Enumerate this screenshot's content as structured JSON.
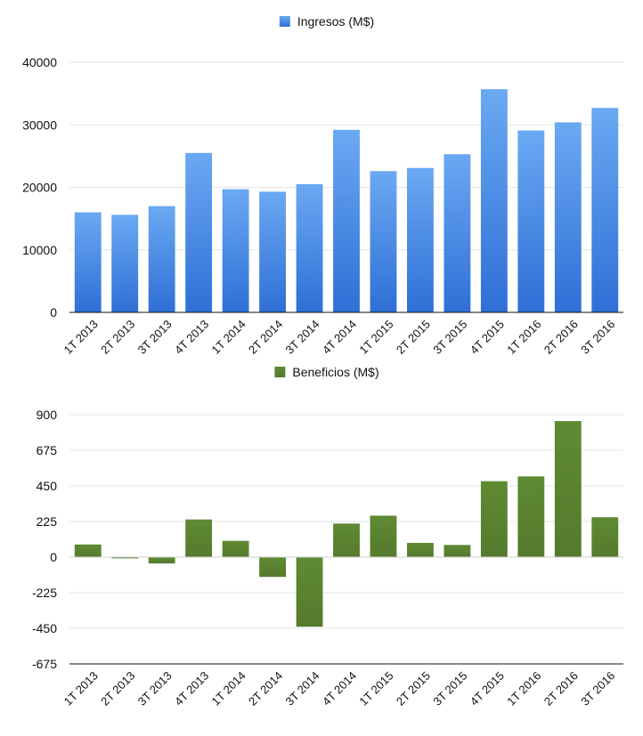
{
  "chart_data": [
    {
      "type": "bar",
      "categories": [
        "1T 2013",
        "2T 2013",
        "3T 2013",
        "4T 2013",
        "1T 2014",
        "2T 2014",
        "3T 2014",
        "4T 2014",
        "1T 2015",
        "2T 2015",
        "3T 2015",
        "4T 2015",
        "1T 2016",
        "2T 2016",
        "3T 2016"
      ],
      "series": [
        {
          "name": "Ingresos (M$)",
          "values": [
            16000,
            15600,
            17000,
            25500,
            19700,
            19300,
            20500,
            29200,
            22600,
            23100,
            25300,
            35700,
            29100,
            30400,
            32700
          ],
          "color": "#4a8fe8"
        }
      ],
      "yticks": [
        "0",
        "10000",
        "20000",
        "30000",
        "40000"
      ],
      "ylim": [
        0,
        40000
      ],
      "grid": true,
      "legend": "top-center"
    },
    {
      "type": "bar",
      "categories": [
        "1T 2013",
        "2T 2013",
        "3T 2013",
        "4T 2013",
        "1T 2014",
        "2T 2014",
        "3T 2014",
        "4T 2014",
        "1T 2015",
        "2T 2015",
        "3T 2015",
        "4T 2015",
        "1T 2016",
        "2T 2016",
        "3T 2016"
      ],
      "series": [
        {
          "name": "Beneficios (M$)",
          "values": [
            80,
            -8,
            -40,
            238,
            103,
            -125,
            -440,
            212,
            262,
            90,
            77,
            480,
            510,
            860,
            252
          ],
          "color": "#5c8231"
        }
      ],
      "yticks": [
        "-675",
        "-450",
        "-225",
        "0",
        "225",
        "450",
        "675",
        "900"
      ],
      "ylim": [
        -675,
        900
      ],
      "grid": true,
      "legend": "top-center"
    }
  ]
}
